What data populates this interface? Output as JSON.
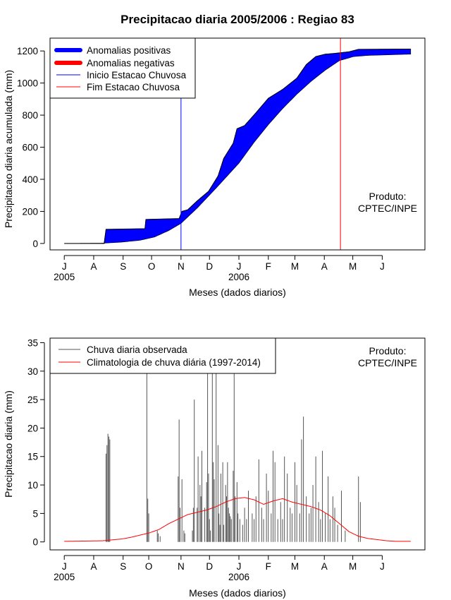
{
  "chart_data": [
    {
      "type": "area",
      "title": "Precipitacao diaria 2005/2006 : Regiao 83",
      "xlabel": "Meses (dados diarios)",
      "ylabel": "Precipitacao diaria acumulada (mm)",
      "ylim": [
        -40,
        1280
      ],
      "yticks": [
        0,
        200,
        400,
        600,
        800,
        1000,
        1200
      ],
      "month_ticks": [
        {
          "label": "J",
          "day": 0
        },
        {
          "label": "A",
          "day": 31
        },
        {
          "label": "S",
          "day": 62
        },
        {
          "label": "O",
          "day": 92
        },
        {
          "label": "N",
          "day": 123
        },
        {
          "label": "D",
          "day": 153
        },
        {
          "label": "J",
          "day": 184
        },
        {
          "label": "F",
          "day": 215
        },
        {
          "label": "M",
          "day": 243
        },
        {
          "label": "A",
          "day": 274
        },
        {
          "label": "M",
          "day": 304
        },
        {
          "label": "J",
          "day": 335
        }
      ],
      "year_labels": [
        {
          "label": "2005",
          "day": 0
        },
        {
          "label": "2006",
          "day": 184
        }
      ],
      "xlim": [
        -15,
        380
      ],
      "legend": {
        "position": "top-left",
        "items": [
          {
            "label": "Anomalias positivas",
            "color": "#0000ff",
            "kind": "thick"
          },
          {
            "label": "Anomalias negativas",
            "color": "#ff0000",
            "kind": "thick"
          },
          {
            "label": "Inicio Estacao Chuvosa",
            "color": "#0000ff",
            "kind": "thin"
          },
          {
            "label": "Fim Estacao Chuvosa",
            "color": "#ff0000",
            "kind": "thin"
          }
        ]
      },
      "onset_day": 123,
      "onset_color": "#0000ff",
      "end_day": 291,
      "end_color": "#ff0000",
      "fill_color": "#0000ff",
      "observed_cumulative": {
        "days": [
          0,
          42,
          44,
          85,
          86,
          121,
          124,
          130,
          140,
          152,
          162,
          168,
          178,
          182,
          190,
          202,
          215,
          230,
          245,
          255,
          265,
          275,
          285,
          300,
          310,
          365
        ],
        "values": [
          0,
          0,
          88,
          92,
          150,
          155,
          200,
          210,
          265,
          325,
          420,
          530,
          625,
          715,
          735,
          815,
          905,
          960,
          1030,
          1115,
          1165,
          1180,
          1185,
          1195,
          1210,
          1212
        ]
      },
      "climatology_cumulative": {
        "days": [
          0,
          42,
          60,
          80,
          95,
          110,
          123,
          140,
          160,
          184,
          200,
          215,
          230,
          245,
          260,
          275,
          290,
          305,
          320,
          365
        ],
        "values": [
          0,
          2,
          8,
          20,
          40,
          80,
          125,
          220,
          345,
          500,
          630,
          740,
          840,
          930,
          1010,
          1080,
          1140,
          1165,
          1172,
          1180
        ]
      },
      "annotation": [
        "Produto:",
        "CPTEC/INPE"
      ]
    },
    {
      "type": "bar+line",
      "xlabel": "Meses (dados diarios)",
      "ylabel": "Precipitacao diaria (mm)",
      "ylim": [
        -1.4,
        35.8
      ],
      "yticks": [
        0,
        5,
        10,
        15,
        20,
        25,
        30,
        35
      ],
      "xlim": [
        -15,
        380
      ],
      "month_ticks": [
        {
          "label": "J",
          "day": 0
        },
        {
          "label": "A",
          "day": 31
        },
        {
          "label": "S",
          "day": 62
        },
        {
          "label": "O",
          "day": 89
        },
        {
          "label": "N",
          "day": 123
        },
        {
          "label": "D",
          "day": 153
        },
        {
          "label": "J",
          "day": 184
        },
        {
          "label": "F",
          "day": 215
        },
        {
          "label": "M",
          "day": 243
        },
        {
          "label": "A",
          "day": 274
        },
        {
          "label": "M",
          "day": 304
        },
        {
          "label": "J",
          "day": 335
        }
      ],
      "year_labels": [
        {
          "label": "2005",
          "day": 0
        },
        {
          "label": "2006",
          "day": 184
        }
      ],
      "legend": {
        "position": "top-left",
        "items": [
          {
            "label": "Chuva diaria observada",
            "color": "#555555"
          },
          {
            "label": "Climatologia de chuva diária (1997-2014)",
            "color": "#ff0000"
          }
        ]
      },
      "annotation": [
        "Produto:",
        "CPTEC/INPE"
      ],
      "observed_daily": {
        "days": [
          44,
          45,
          46,
          47,
          48,
          87,
          88,
          89,
          98,
          99,
          101,
          120,
          121,
          122,
          124,
          126,
          127,
          135,
          136,
          137,
          140,
          141,
          143,
          144,
          145,
          148,
          150,
          151,
          152,
          153,
          154,
          156,
          157,
          158,
          160,
          162,
          163,
          164,
          165,
          167,
          168,
          170,
          171,
          172,
          173,
          174,
          175,
          176,
          178,
          179,
          180,
          182,
          183,
          185,
          188,
          190,
          192,
          194,
          198,
          200,
          202,
          205,
          208,
          210,
          213,
          215,
          218,
          220,
          222,
          225,
          228,
          230,
          232,
          235,
          238,
          240,
          243,
          245,
          248,
          250,
          252,
          255,
          258,
          260,
          262,
          265,
          268,
          270,
          272,
          275,
          278,
          280,
          283,
          285,
          288,
          292,
          296,
          310,
          312
        ],
        "values": [
          15.5,
          17,
          19,
          18.5,
          18,
          36,
          7.6,
          5,
          2,
          1.5,
          1,
          11.5,
          21.5,
          6,
          11,
          2,
          1.5,
          2,
          6,
          25,
          6,
          15,
          10,
          8,
          16,
          6,
          10.5,
          36,
          12,
          4,
          2,
          36,
          14,
          11,
          36,
          17,
          5,
          3,
          12,
          14,
          3,
          10,
          8,
          14,
          6,
          5,
          4.5,
          4,
          12.5,
          36,
          8,
          10.5,
          5,
          4,
          3,
          6,
          4,
          9,
          5,
          4,
          8,
          14.5,
          6,
          4,
          12,
          9,
          5,
          16,
          14,
          4,
          7,
          4,
          15,
          12,
          6,
          5,
          14,
          10,
          5,
          18,
          22,
          8,
          5,
          6,
          10,
          15,
          7,
          4,
          16,
          5,
          11.5,
          4,
          8,
          6,
          3,
          9,
          2,
          11.5,
          7
        ]
      },
      "climatology_daily": {
        "days": [
          0,
          40,
          60,
          70,
          80,
          90,
          100,
          110,
          120,
          130,
          140,
          150,
          160,
          170,
          180,
          190,
          200,
          210,
          220,
          230,
          240,
          250,
          260,
          270,
          280,
          290,
          300,
          310,
          320,
          330,
          340,
          350,
          365
        ],
        "values": [
          0.1,
          0.2,
          0.5,
          0.8,
          1.2,
          1.6,
          2.2,
          3.2,
          4.0,
          4.8,
          5.2,
          5.6,
          6.2,
          7.0,
          7.6,
          7.8,
          7.4,
          6.6,
          7.2,
          7.6,
          7.0,
          6.6,
          6.2,
          5.6,
          4.6,
          3.2,
          1.8,
          1.0,
          0.6,
          0.4,
          0.2,
          0.1,
          0.1
        ]
      }
    }
  ]
}
